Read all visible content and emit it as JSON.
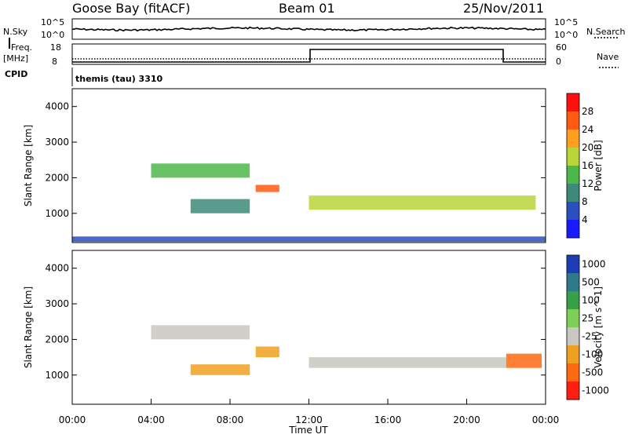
{
  "header": {
    "station": "Goose Bay (fitACF)",
    "beam": "Beam 01",
    "date": "25/Nov/2011"
  },
  "status_panels": {
    "nsky_label": "N.Sky",
    "nsky_tick_top": "10^5",
    "nsky_tick_bottom": "10^0",
    "nsearch_label": "N.Search",
    "nsearch_tick_top": "10^5",
    "nsearch_tick_bottom": "10^0",
    "freq_label_1": "Freq.",
    "freq_label_2": "[MHz]",
    "freq_tick_top": "18",
    "freq_tick_bottom": "8",
    "nave_label": "Nave",
    "nave_tick_top": "60",
    "nave_tick_bottom": "0",
    "cpid_label": "CPID",
    "cpid_value": "themis (tau) 3310"
  },
  "chart_data": [
    {
      "type": "heatmap",
      "name": "power",
      "ylabel": "Slant Range [km]",
      "ylim": [
        180,
        4500
      ],
      "yticks": [
        "1000",
        "2000",
        "3000",
        "4000"
      ],
      "colorbar_label": "Power [dB]",
      "colorbar_ticks": [
        "4",
        "8",
        "12",
        "16",
        "20",
        "24",
        "28"
      ],
      "colorbar_colors": [
        "#1a1aff",
        "#2c4fc0",
        "#3d8a7a",
        "#4db84a",
        "#b8d63a",
        "#ffa020",
        "#ff5a14",
        "#ff1010"
      ],
      "features": [
        {
          "t": [
            4.0,
            9.0
          ],
          "range": [
            2000,
            2400
          ],
          "level": 12
        },
        {
          "t": [
            6.0,
            9.0
          ],
          "range": [
            1000,
            1400
          ],
          "level": 10
        },
        {
          "t": [
            9.3,
            10.5
          ],
          "range": [
            1600,
            1800
          ],
          "level": 24
        },
        {
          "t": [
            12.0,
            23.5
          ],
          "range": [
            1100,
            1500
          ],
          "level": 16
        },
        {
          "t": [
            0.0,
            24.0
          ],
          "range": [
            200,
            350
          ],
          "level": 6
        }
      ]
    },
    {
      "type": "heatmap",
      "name": "velocity",
      "xlabel": "Time UT",
      "ylabel": "Slant Range [km]",
      "ylim": [
        180,
        4500
      ],
      "yticks": [
        "1000",
        "2000",
        "3000",
        "4000"
      ],
      "xticks": [
        "00:00",
        "04:00",
        "08:00",
        "12:00",
        "16:00",
        "20:00",
        "00:00"
      ],
      "colorbar_label": "Velocity [m s^-1]",
      "colorbar_ticks": [
        "1000",
        "500",
        "100",
        "25",
        "-25",
        "-100",
        "-500",
        "-1000"
      ],
      "colorbar_colors": [
        "#1e3cb4",
        "#2e7a8c",
        "#3aa048",
        "#7ecf5a",
        "#c8c8c0",
        "#f0a020",
        "#ff6a10",
        "#ff1e10"
      ],
      "features": [
        {
          "t": [
            4.0,
            9.0
          ],
          "range": [
            2000,
            2400
          ],
          "level": 0
        },
        {
          "t": [
            6.0,
            9.0
          ],
          "range": [
            1000,
            1300
          ],
          "level": -100
        },
        {
          "t": [
            9.3,
            10.5
          ],
          "range": [
            1500,
            1800
          ],
          "level": -100
        },
        {
          "t": [
            12.0,
            22.0
          ],
          "range": [
            1200,
            1500
          ],
          "level": 0
        },
        {
          "t": [
            22.0,
            23.8
          ],
          "range": [
            1200,
            1600
          ],
          "level": -500
        }
      ]
    }
  ]
}
